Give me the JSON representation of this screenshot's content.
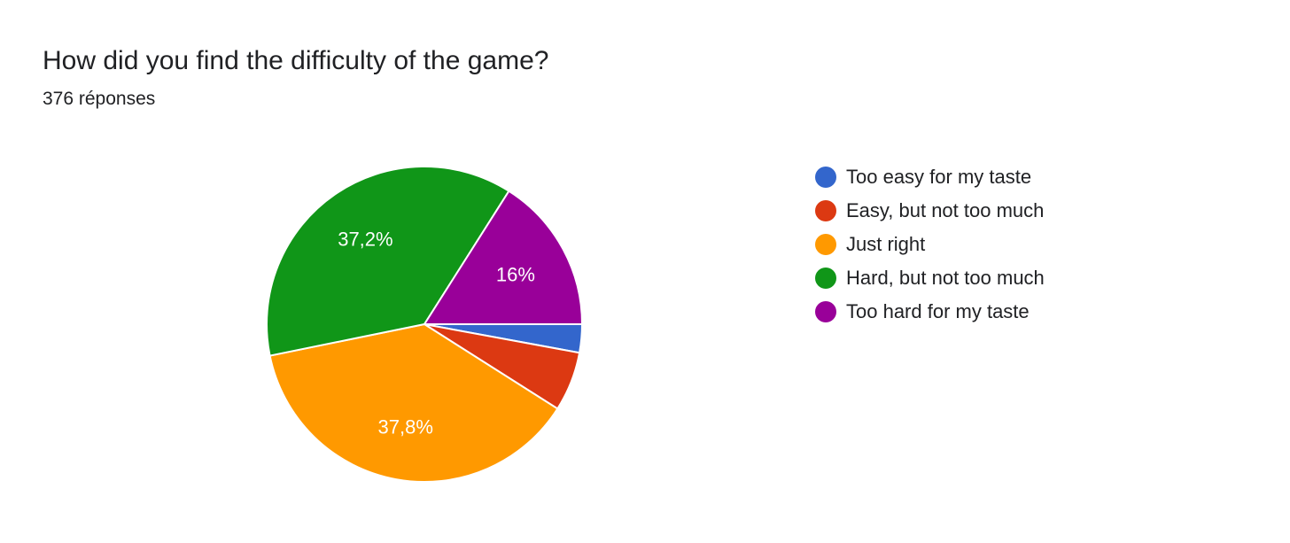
{
  "header": {
    "title": "How did you find the difficulty of the game?",
    "subtitle": "376 réponses"
  },
  "chart_data": {
    "type": "pie",
    "title": "How did you find the difficulty of the game?",
    "subtitle": "376 réponses",
    "legend_position": "right",
    "start_angle_deg": 90,
    "direction": "clockwise",
    "slices": [
      {
        "label": "Too easy for my taste",
        "value": 2.9,
        "color": "#3366cc",
        "display_label": ""
      },
      {
        "label": "Easy, but not too much",
        "value": 6.1,
        "color": "#dc3912",
        "display_label": ""
      },
      {
        "label": "Just right",
        "value": 37.8,
        "color": "#ff9900",
        "display_label": "37,8%"
      },
      {
        "label": "Hard, but not too much",
        "value": 37.2,
        "color": "#109618",
        "display_label": "37,2%"
      },
      {
        "label": "Too hard for my taste",
        "value": 16.0,
        "color": "#990099",
        "display_label": "16%"
      }
    ]
  }
}
